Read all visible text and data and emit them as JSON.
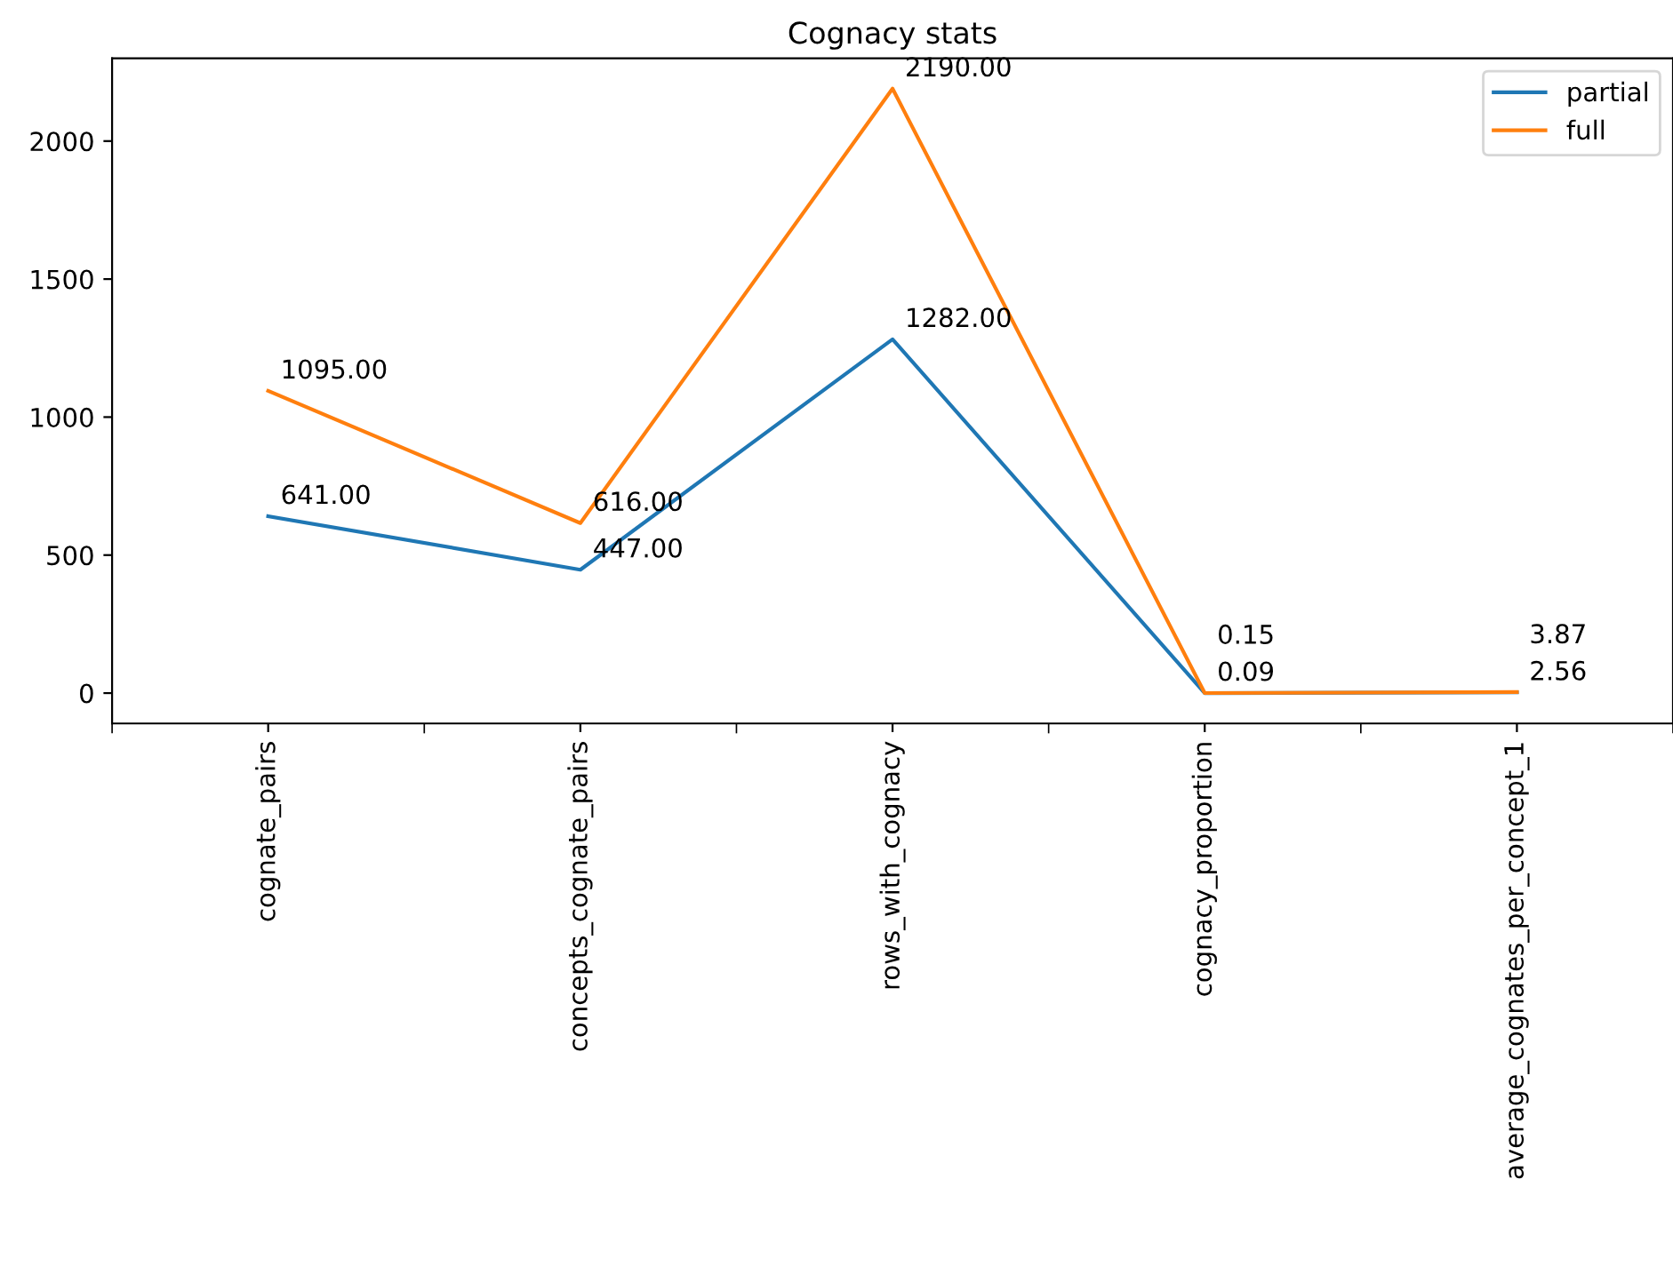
{
  "chart_data": {
    "type": "line",
    "title": "Cognacy stats",
    "categories": [
      "cognate_pairs",
      "concepts_cognate_pairs",
      "rows_with_cognacy",
      "cognacy_proportion",
      "average_cognates_per_concept_1"
    ],
    "series": [
      {
        "name": "partial",
        "color": "#1f77b4",
        "values": [
          641,
          447,
          1282,
          0.09,
          2.56
        ],
        "value_labels": [
          "641.00",
          "447.00",
          "1282.00",
          "0.09",
          "2.56"
        ]
      },
      {
        "name": "full",
        "color": "#ff7f0e",
        "values": [
          1095,
          616,
          2190,
          0.15,
          3.87
        ],
        "value_labels": [
          "1095.00",
          "616.00",
          "2190.00",
          "0.15",
          "3.87"
        ]
      }
    ],
    "ylim": [
      -110,
      2300
    ],
    "yticks": [
      0,
      500,
      1000,
      1500,
      2000
    ],
    "legend": "top right",
    "grid": false
  }
}
